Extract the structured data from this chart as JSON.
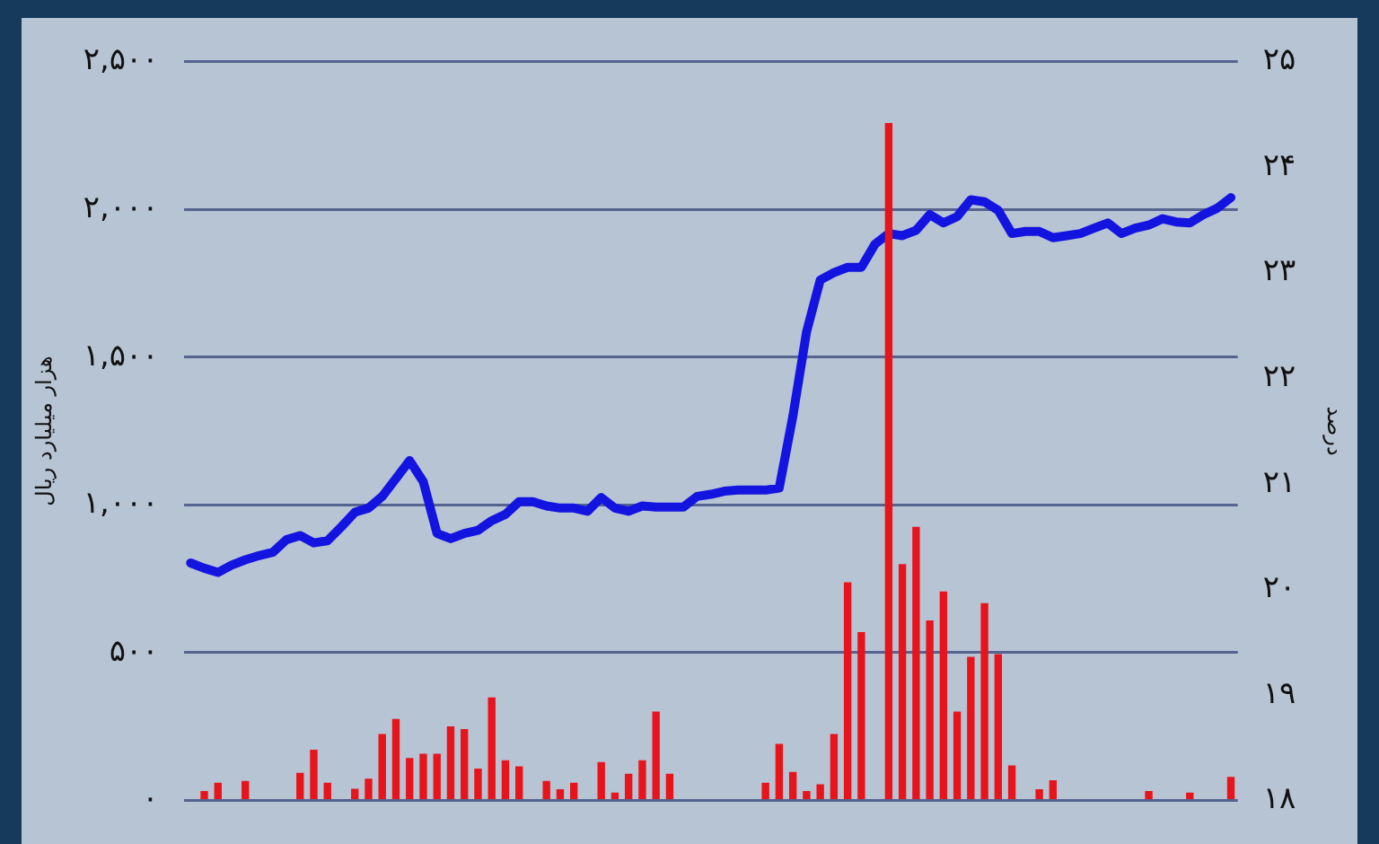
{
  "chart_data": {
    "type": "bar",
    "categories": [
      null,
      null,
      null,
      null,
      null,
      null,
      null,
      null,
      null,
      null,
      null,
      null,
      null,
      null,
      null,
      null,
      null,
      null,
      null,
      null,
      null,
      null,
      null,
      null,
      null,
      null,
      null,
      null,
      null,
      null,
      null,
      null,
      null,
      null,
      null,
      null,
      null,
      null,
      null,
      null,
      null,
      null,
      null,
      null,
      null,
      null,
      null,
      null,
      null,
      null,
      null,
      null,
      null,
      null,
      null,
      null,
      null,
      null,
      null,
      null,
      null,
      null,
      null,
      null,
      null,
      null,
      null,
      null,
      null,
      null,
      null,
      null,
      null,
      null,
      null,
      null,
      null
    ],
    "series": [
      {
        "color": "#e8141c",
        "values": [
          0,
          32,
          60,
          0,
          66,
          0,
          0,
          0,
          94,
          172,
          60,
          0,
          40,
          74,
          225,
          276,
          144,
          158,
          158,
          251,
          242,
          108,
          349,
          136,
          116,
          0,
          66,
          38,
          60,
          0,
          130,
          27,
          91,
          136,
          301,
          91,
          0,
          0,
          0,
          0,
          0,
          0,
          60,
          192,
          97,
          32,
          55,
          225,
          738,
          570,
          0,
          2292,
          800,
          926,
          609,
          707,
          301,
          486,
          668,
          495,
          119,
          0,
          38,
          69,
          0,
          0,
          0,
          0,
          0,
          0,
          32,
          0,
          0,
          27,
          0,
          0,
          80
        ]
      },
      {
        "type": "line",
        "axis": "y2",
        "color": "#1414e0",
        "values": [
          20.25,
          20.2,
          20.16,
          20.23,
          20.28,
          20.32,
          20.35,
          20.47,
          20.51,
          20.44,
          20.46,
          20.59,
          20.73,
          20.77,
          20.88,
          21.05,
          21.22,
          21.02,
          20.53,
          20.48,
          20.53,
          20.56,
          20.65,
          20.71,
          20.83,
          20.83,
          20.79,
          20.77,
          20.77,
          20.74,
          20.87,
          20.77,
          20.74,
          20.79,
          20.78,
          20.78,
          20.78,
          20.88,
          20.9,
          20.93,
          20.94,
          20.94,
          20.94,
          20.96,
          21.64,
          22.44,
          22.93,
          23.0,
          23.05,
          23.05,
          23.27,
          23.37,
          23.35,
          23.4,
          23.55,
          23.47,
          23.53,
          23.69,
          23.67,
          23.59,
          23.37,
          23.39,
          23.39,
          23.33,
          23.35,
          23.37,
          23.42,
          23.47,
          23.37,
          23.42,
          23.45,
          23.51,
          23.48,
          23.47,
          23.55,
          23.61,
          23.71
        ]
      }
    ],
    "ylabel": "هزار میلیارد ریال",
    "y2label": "درصد",
    "ylim": [
      0,
      2500
    ],
    "yticks": [
      {
        "value": 0,
        "label": "۰"
      },
      {
        "value": 500,
        "label": "۵۰۰"
      },
      {
        "value": 1000,
        "label": "۱,۰۰۰"
      },
      {
        "value": 1500,
        "label": "۱,۵۰۰"
      },
      {
        "value": 2000,
        "label": "۲,۰۰۰"
      },
      {
        "value": 2500,
        "label": "۲,۵۰۰"
      }
    ],
    "y2lim": [
      18,
      25
    ],
    "y2ticks": [
      {
        "value": 18,
        "label": "۱۸"
      },
      {
        "value": 19,
        "label": "۱۹"
      },
      {
        "value": 20,
        "label": "۲۰"
      },
      {
        "value": 21,
        "label": "۲۱"
      },
      {
        "value": 22,
        "label": "۲۲"
      },
      {
        "value": 23,
        "label": "۲۳"
      },
      {
        "value": 24,
        "label": "۲۴"
      },
      {
        "value": 25,
        "label": "۲۵"
      }
    ],
    "grid": "y",
    "legend": false
  }
}
